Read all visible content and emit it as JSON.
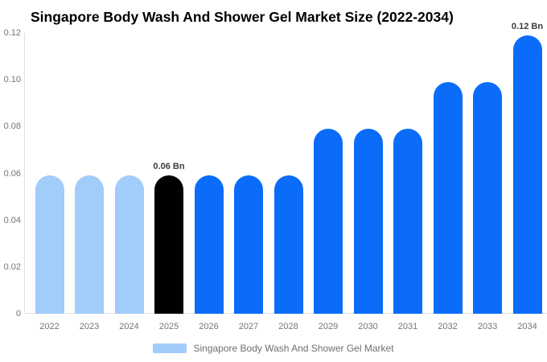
{
  "title": "Singapore Body Wash And Shower Gel Market Size (2022-2034)",
  "legend": {
    "label": "Singapore Body Wash And Shower Gel Market",
    "swatch_color": "#A2CCF9"
  },
  "colors": {
    "light_blue": "#A2CCF9",
    "bright_blue": "#0B6CFA",
    "highlight_black": "#000000",
    "axis_line": "#E0E0E0",
    "tick_text": "#757575",
    "annotation_text": "#3C3C3C",
    "title_text": "#000000",
    "background": "#FFFFFF"
  },
  "chart_data": {
    "type": "bar",
    "title": "Singapore Body Wash And Shower Gel Market Size (2022-2034)",
    "categories": [
      "2022",
      "2023",
      "2024",
      "2025",
      "2026",
      "2027",
      "2028",
      "2029",
      "2030",
      "2031",
      "2032",
      "2033",
      "2034"
    ],
    "values": [
      0.059,
      0.059,
      0.059,
      0.059,
      0.059,
      0.059,
      0.059,
      0.079,
      0.079,
      0.079,
      0.099,
      0.099,
      0.119
    ],
    "bar_colors": [
      "#A2CCF9",
      "#A2CCF9",
      "#A2CCF9",
      "#000000",
      "#0B6CFA",
      "#0B6CFA",
      "#0B6CFA",
      "#0B6CFA",
      "#0B6CFA",
      "#0B6CFA",
      "#0B6CFA",
      "#0B6CFA",
      "#0B6CFA"
    ],
    "xlabel": "",
    "ylabel": "",
    "ylim": [
      0,
      0.12
    ],
    "ytick_labels": [
      "0",
      "0.02",
      "0.04",
      "0.06",
      "0.08",
      "0.10",
      "0.12"
    ],
    "yticks": [
      0,
      0.02,
      0.04,
      0.06,
      0.08,
      0.1,
      0.12
    ],
    "grid": false,
    "legend_position": "bottom",
    "legend_entries": [
      "Singapore Body Wash And Shower Gel Market"
    ],
    "annotations": [
      {
        "category": "2025",
        "label": "0.06 Bn"
      },
      {
        "category": "2034",
        "label": "0.12 Bn"
      }
    ]
  }
}
